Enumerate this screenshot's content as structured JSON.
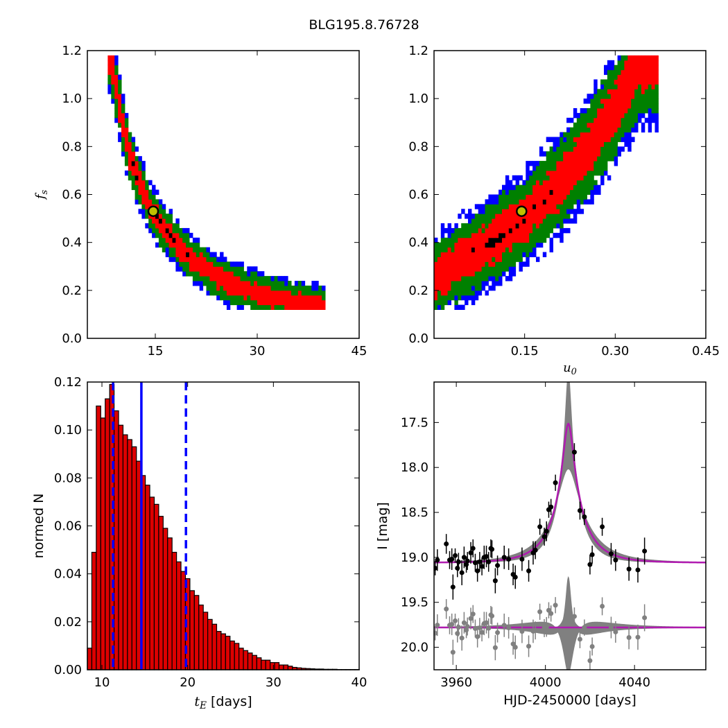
{
  "figure": {
    "title": "BLG195.8.76728"
  },
  "colors": {
    "red": "#ff0000",
    "green": "#008000",
    "blue": "#0000ff",
    "black": "#000000",
    "marker_fill": "#bfbf00",
    "hist_bar": "#dd0000",
    "magenta": "#b01ab0",
    "gray": "#808080"
  },
  "chart_data": [
    {
      "panel": "top-left",
      "type": "heatmap",
      "xlabel": "",
      "ylabel": "f_s",
      "xlim": [
        5,
        45
      ],
      "ylim": [
        0,
        1.2
      ],
      "xticks": [
        "15",
        "30",
        "45"
      ],
      "yticks": [
        "0.0",
        "0.2",
        "0.4",
        "0.6",
        "0.8",
        "1.0",
        "1.2"
      ],
      "levels": [
        "blue",
        "green",
        "red",
        "black"
      ],
      "ridge": [
        [
          8.4,
          1.17
        ],
        [
          9.5,
          1.0
        ],
        [
          10.5,
          0.85
        ],
        [
          11.5,
          0.74
        ],
        [
          12.5,
          0.66
        ],
        [
          13.5,
          0.6
        ],
        [
          14.5,
          0.53
        ],
        [
          16,
          0.47
        ],
        [
          17.5,
          0.42
        ],
        [
          19,
          0.37
        ],
        [
          21,
          0.32
        ],
        [
          23,
          0.28
        ],
        [
          26,
          0.23
        ],
        [
          30,
          0.19
        ],
        [
          34,
          0.16
        ],
        [
          38,
          0.14
        ]
      ],
      "best_fit": {
        "x": 14.7,
        "y": 0.53
      }
    },
    {
      "panel": "top-right",
      "type": "heatmap",
      "xlabel": "u_0",
      "ylabel": "",
      "xlim": [
        0,
        0.45
      ],
      "ylim": [
        0,
        1.2
      ],
      "xticks": [
        "0.15",
        "0.30",
        "0.45"
      ],
      "yticks": [
        "0.0",
        "0.2",
        "0.4",
        "0.6",
        "0.8",
        "1.0",
        "1.2"
      ],
      "levels": [
        "blue",
        "green",
        "red",
        "black"
      ],
      "ridge": [
        [
          0.0,
          0.25
        ],
        [
          0.05,
          0.33
        ],
        [
          0.1,
          0.41
        ],
        [
          0.15,
          0.5
        ],
        [
          0.2,
          0.62
        ],
        [
          0.25,
          0.77
        ],
        [
          0.3,
          0.96
        ],
        [
          0.34,
          1.14
        ]
      ],
      "best_fit": {
        "x": 0.145,
        "y": 0.53
      }
    },
    {
      "panel": "bottom-left",
      "type": "bar",
      "xlabel": "t_E [days]",
      "ylabel": "normed N",
      "xlim": [
        8.3,
        40
      ],
      "ylim": [
        0,
        0.12
      ],
      "xticks": [
        "10",
        "20",
        "30",
        "40"
      ],
      "yticks": [
        "0.00",
        "0.02",
        "0.04",
        "0.06",
        "0.08",
        "0.10",
        "0.12"
      ],
      "bin_start": 8.3,
      "bin_width": 0.52,
      "values": [
        0.009,
        0.049,
        0.11,
        0.105,
        0.113,
        0.119,
        0.108,
        0.102,
        0.098,
        0.096,
        0.093,
        0.087,
        0.081,
        0.077,
        0.072,
        0.069,
        0.064,
        0.059,
        0.055,
        0.049,
        0.045,
        0.041,
        0.038,
        0.033,
        0.031,
        0.027,
        0.024,
        0.021,
        0.019,
        0.016,
        0.015,
        0.014,
        0.012,
        0.011,
        0.009,
        0.008,
        0.007,
        0.006,
        0.005,
        0.004,
        0.004,
        0.003,
        0.003,
        0.002,
        0.002,
        0.0015,
        0.001,
        0.0008,
        0.0006,
        0.0005,
        0.0004,
        0.0003,
        0.0003,
        0.0002,
        0.0002,
        0.0002,
        0.0001,
        0.0001,
        0.0001,
        0.0001,
        0.0001
      ],
      "vlines": {
        "median": 14.6,
        "lower": 11.3,
        "upper": 19.8
      }
    },
    {
      "panel": "bottom-right",
      "type": "scatter",
      "xlabel": "HJD-2450000 [days]",
      "ylabel": "I [mag]",
      "xlim": [
        3950,
        4072
      ],
      "ylim": [
        20.25,
        17.05
      ],
      "xticks": [
        "3960",
        "4000",
        "4040"
      ],
      "yticks": [
        "17.5",
        "18.0",
        "18.5",
        "19.0",
        "19.5",
        "20.0"
      ],
      "model": {
        "t0": 4010.3,
        "tE": 14.6,
        "u0": 0.145,
        "fs": 0.53,
        "I_base": 19.06,
        "residual_base": 19.78
      },
      "points": [
        [
          3950.5,
          19.12,
          0.08
        ],
        [
          3951.5,
          19.03,
          0.12
        ],
        [
          3955.5,
          18.85,
          0.11
        ],
        [
          3957.0,
          19.03,
          0.1
        ],
        [
          3958.0,
          19.02,
          0.12
        ],
        [
          3958.5,
          19.33,
          0.14
        ],
        [
          3959.5,
          18.98,
          0.08
        ],
        [
          3960.5,
          19.12,
          0.1
        ],
        [
          3961.0,
          19.05,
          0.1
        ],
        [
          3962.5,
          19.17,
          0.14
        ],
        [
          3963.5,
          19.0,
          0.12
        ],
        [
          3964.5,
          19.08,
          0.09
        ],
        [
          3965.0,
          19.04,
          0.1
        ],
        [
          3966.5,
          18.95,
          0.12
        ],
        [
          3967.5,
          18.9,
          0.1
        ],
        [
          3968.5,
          19.06,
          0.1
        ],
        [
          3969.5,
          19.15,
          0.12
        ],
        [
          3970.5,
          19.05,
          0.11
        ],
        [
          3971.5,
          19.1,
          0.1
        ],
        [
          3972.5,
          19.0,
          0.13
        ],
        [
          3973.5,
          18.99,
          0.12
        ],
        [
          3974.5,
          19.05,
          0.11
        ],
        [
          3975.5,
          18.9,
          0.1
        ],
        [
          3976.0,
          18.91,
          0.1
        ],
        [
          3977.5,
          19.26,
          0.14
        ],
        [
          3978.5,
          19.09,
          0.11
        ],
        [
          3981.5,
          19.0,
          0.13
        ],
        [
          3983.5,
          19.02,
          0.12
        ],
        [
          3985.5,
          19.19,
          0.12
        ],
        [
          3986.5,
          19.22,
          0.13
        ],
        [
          3989.5,
          19.02,
          0.13
        ],
        [
          3992.5,
          19.15,
          0.12
        ],
        [
          3994.5,
          18.95,
          0.13
        ],
        [
          3995.5,
          18.92,
          0.1
        ],
        [
          3997.5,
          18.66,
          0.09
        ],
        [
          3999.5,
          18.77,
          0.1
        ],
        [
          4000.5,
          18.71,
          0.11
        ],
        [
          4001.5,
          18.47,
          0.09
        ],
        [
          4002.5,
          18.44,
          0.09
        ],
        [
          4004.5,
          18.17,
          0.09
        ],
        [
          4013.0,
          17.83,
          0.1
        ],
        [
          4015.5,
          18.48,
          0.1
        ],
        [
          4017.5,
          18.55,
          0.09
        ],
        [
          4020.0,
          19.08,
          0.11
        ],
        [
          4021.0,
          18.97,
          0.1
        ],
        [
          4025.5,
          18.66,
          0.1
        ],
        [
          4029.5,
          18.96,
          0.12
        ],
        [
          4031.5,
          19.03,
          0.12
        ],
        [
          4037.5,
          19.13,
          0.13
        ],
        [
          4041.5,
          19.14,
          0.14
        ],
        [
          4044.5,
          18.93,
          0.15
        ]
      ]
    }
  ]
}
